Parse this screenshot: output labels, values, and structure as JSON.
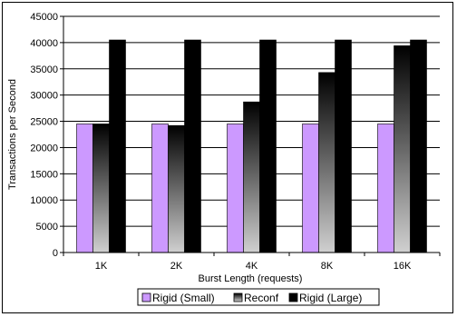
{
  "chart_data": {
    "type": "bar",
    "categories": [
      "1K",
      "2K",
      "4K",
      "8K",
      "16K"
    ],
    "series": [
      {
        "name": "Rigid (Small)",
        "values": [
          24500,
          24500,
          24500,
          24500,
          24500
        ]
      },
      {
        "name": "Reconf",
        "values": [
          24500,
          24200,
          28700,
          34300,
          39400
        ]
      },
      {
        "name": "Rigid (Large)",
        "values": [
          40500,
          40500,
          40500,
          40500,
          40500
        ]
      }
    ],
    "xlabel": "Burst Length (requests)",
    "ylabel": "Transactions per Second",
    "ylim": [
      0,
      45000
    ],
    "yticks": [
      0,
      5000,
      10000,
      15000,
      20000,
      25000,
      30000,
      35000,
      40000,
      45000
    ],
    "grid": true,
    "legend_position": "bottom",
    "colors": {
      "rigid_small": "#cc99ff",
      "reconf_top": "#000000",
      "reconf_bottom": "#d0d0d0",
      "rigid_large": "#000000",
      "gridline": "#000000"
    }
  }
}
